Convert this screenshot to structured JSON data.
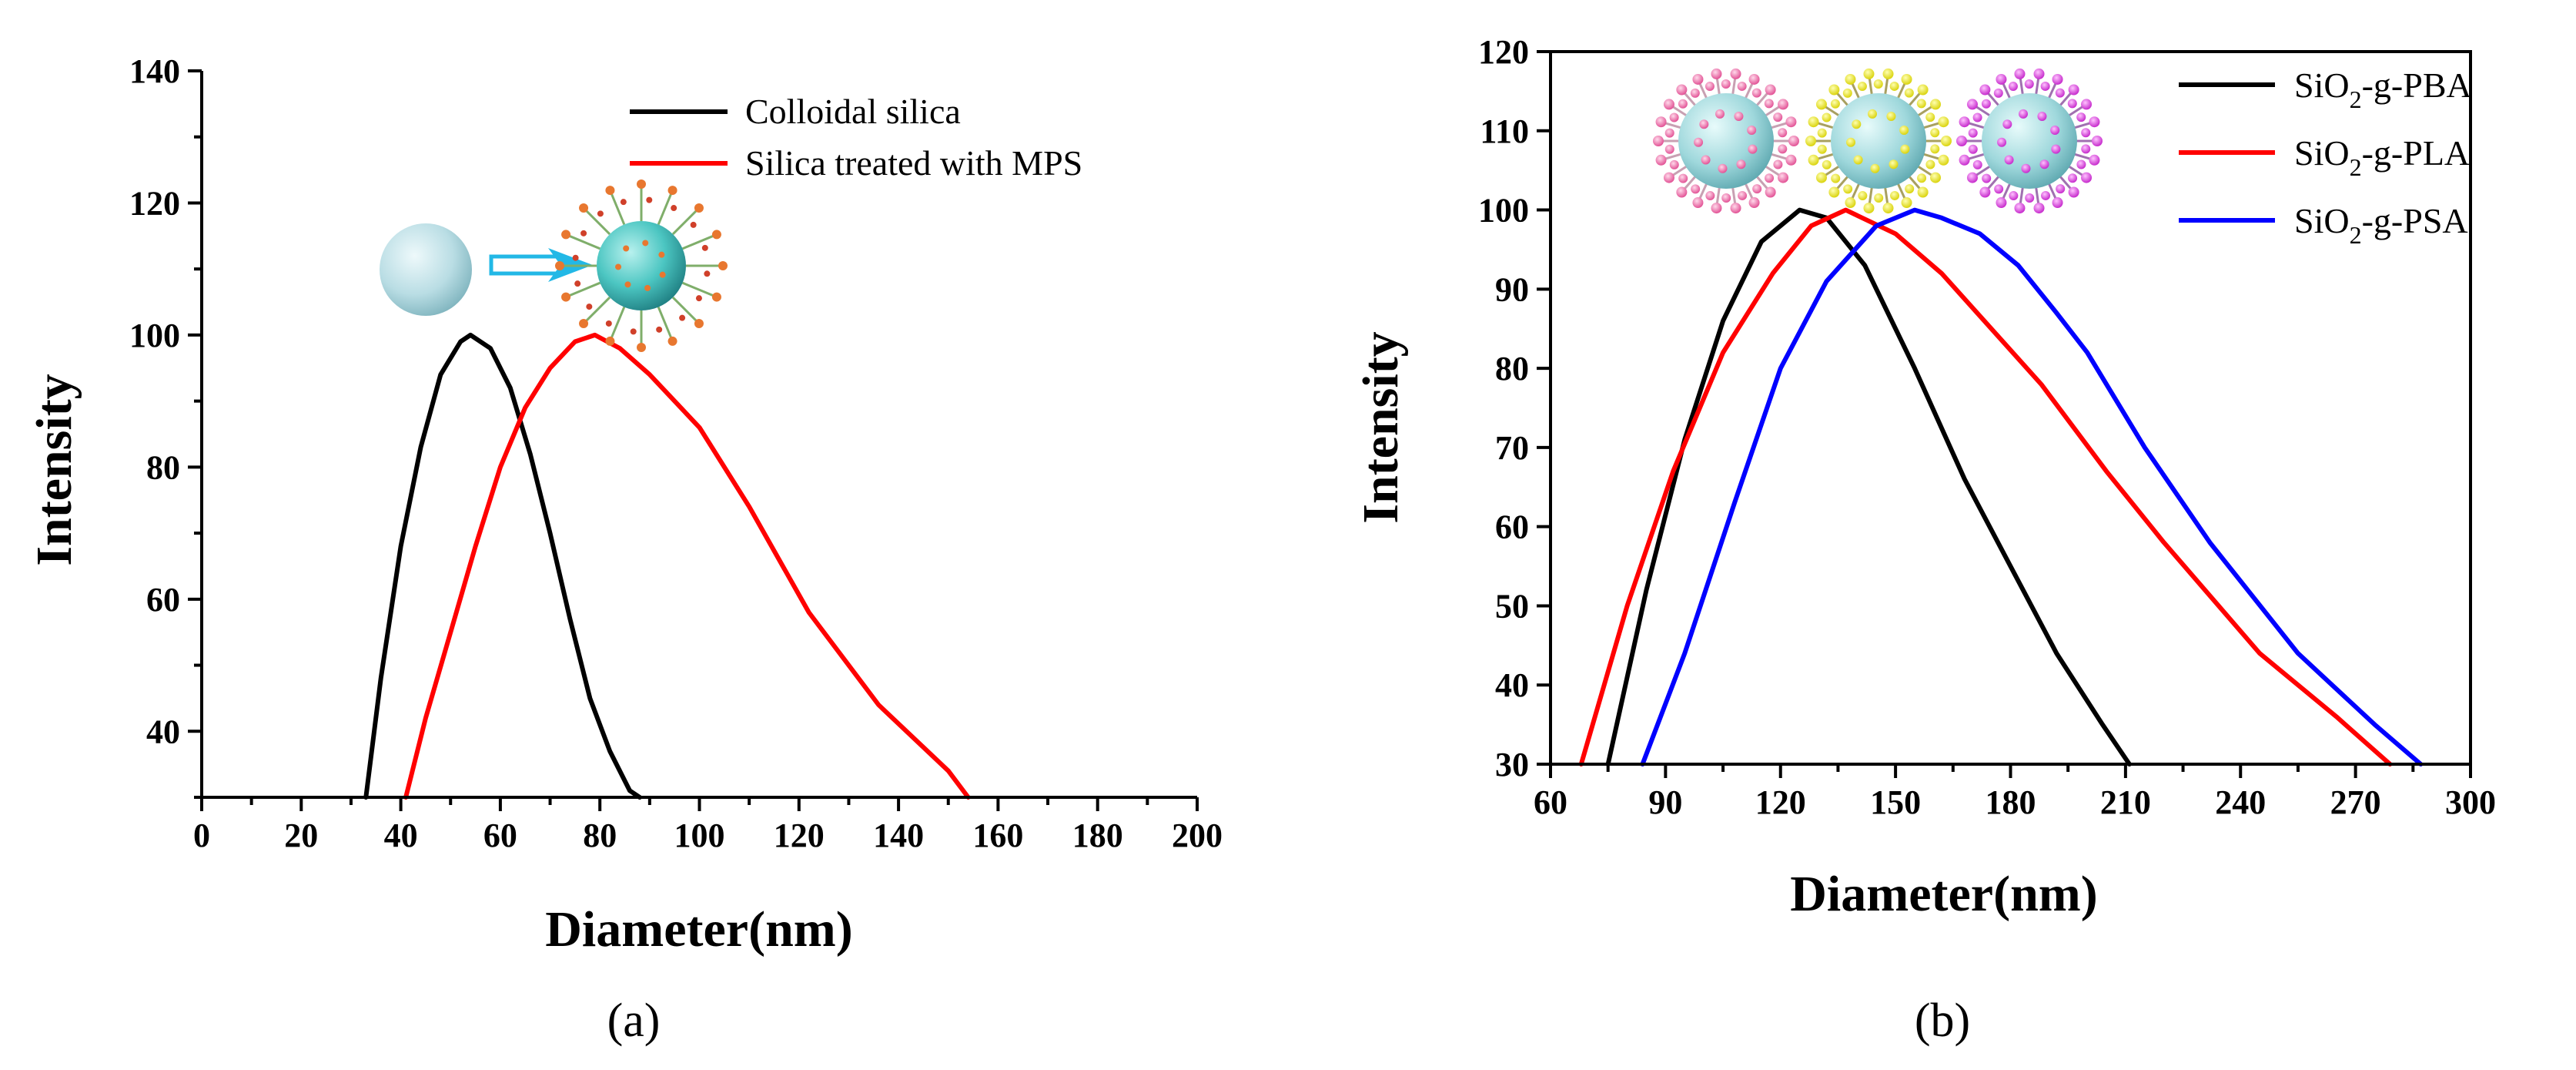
{
  "chart_data": [
    {
      "type": "line",
      "panel_label": "(a)",
      "xlabel": "Diameter(nm)",
      "ylabel": "Intensity",
      "xlim": [
        0,
        200
      ],
      "ylim": [
        30,
        140
      ],
      "xticks": [
        0,
        20,
        40,
        60,
        80,
        100,
        120,
        140,
        160,
        180,
        200
      ],
      "yticks": [
        40,
        60,
        80,
        100,
        120,
        140
      ],
      "legend_position": "top-right",
      "series": [
        {
          "name": "Colloidal silica",
          "color": "#000000",
          "x": [
            33,
            36,
            40,
            44,
            48,
            52,
            54,
            58,
            62,
            66,
            70,
            74,
            78,
            82,
            86,
            88
          ],
          "y": [
            30,
            48,
            68,
            83,
            94,
            99,
            100,
            98,
            92,
            82,
            70,
            57,
            45,
            37,
            31,
            30
          ]
        },
        {
          "name": "Silica treated with MPS",
          "color": "#ff0000",
          "x": [
            41,
            45,
            50,
            55,
            60,
            65,
            70,
            75,
            79,
            84,
            90,
            100,
            110,
            122,
            136,
            150,
            154
          ],
          "y": [
            30,
            42,
            55,
            68,
            80,
            89,
            95,
            99,
            100,
            98,
            94,
            86,
            74,
            58,
            44,
            34,
            30
          ]
        }
      ]
    },
    {
      "type": "line",
      "panel_label": "(b)",
      "xlabel": "Diameter(nm)",
      "ylabel": "Intensity",
      "xlim": [
        60,
        300
      ],
      "ylim": [
        30,
        120
      ],
      "xticks": [
        60,
        90,
        120,
        150,
        180,
        210,
        240,
        270,
        300
      ],
      "yticks": [
        30,
        40,
        50,
        60,
        70,
        80,
        90,
        100,
        110,
        120
      ],
      "legend_position": "top-right",
      "legend_labels": [
        {
          "base": "SiO",
          "sub": "2",
          "rest": "-g-PBA"
        },
        {
          "base": "SiO",
          "sub": "2",
          "rest": "-g-PLA"
        },
        {
          "base": "SiO",
          "sub": "2",
          "rest": "-g-PSA"
        }
      ],
      "series": [
        {
          "name": "SiO2-g-PBA",
          "color": "#000000",
          "x": [
            75,
            85,
            95,
            105,
            115,
            125,
            132,
            142,
            155,
            168,
            180,
            192,
            204,
            211
          ],
          "y": [
            30,
            52,
            71,
            86,
            96,
            100,
            99,
            93,
            80,
            66,
            55,
            44,
            35,
            30
          ]
        },
        {
          "name": "SiO2-g-PLA",
          "color": "#ff0000",
          "x": [
            68,
            80,
            92,
            105,
            118,
            128,
            137,
            150,
            162,
            175,
            188,
            205,
            220,
            245,
            265,
            279
          ],
          "y": [
            30,
            50,
            67,
            82,
            92,
            98,
            100,
            97,
            92,
            85,
            78,
            67,
            58,
            44,
            36,
            30
          ]
        },
        {
          "name": "SiO2-g-PSA",
          "color": "#0000ff",
          "x": [
            84,
            95,
            108,
            120,
            132,
            145,
            155,
            162,
            172,
            182,
            192,
            200,
            215,
            232,
            255,
            275,
            287
          ],
          "y": [
            30,
            44,
            63,
            80,
            91,
            98,
            100,
            99,
            97,
            93,
            87,
            82,
            70,
            58,
            44,
            35,
            30
          ]
        }
      ]
    }
  ]
}
